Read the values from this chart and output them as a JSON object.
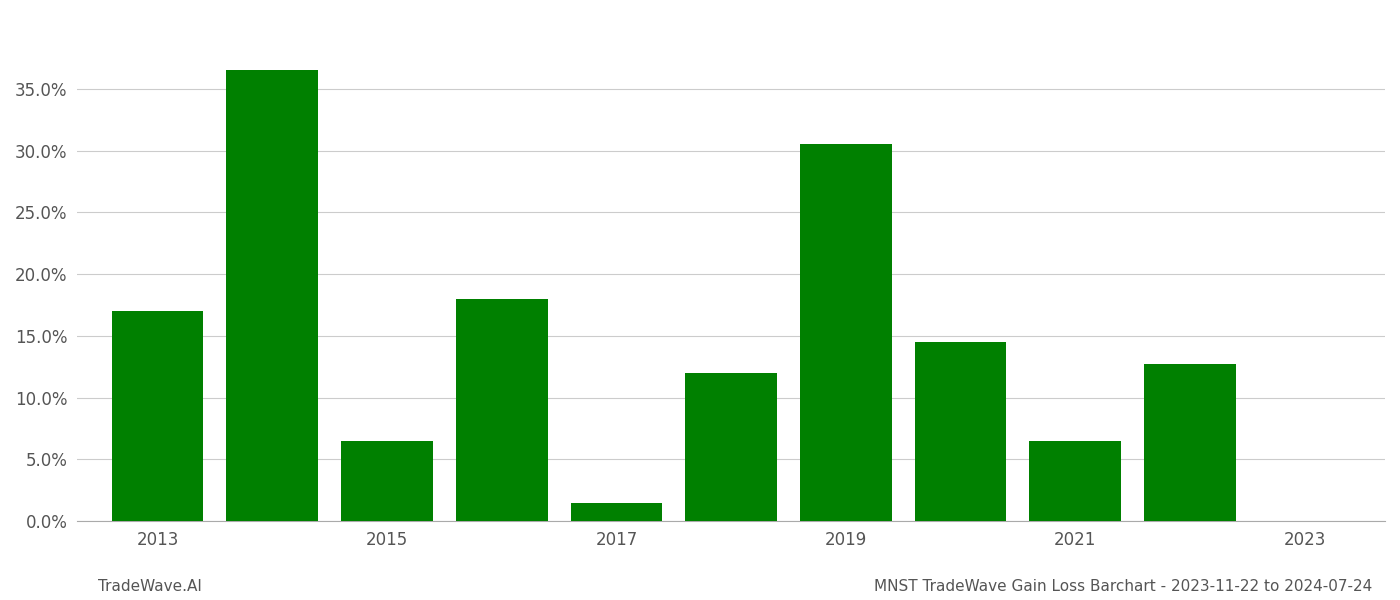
{
  "years": [
    2013,
    2014,
    2015,
    2016,
    2017,
    2018,
    2019,
    2020,
    2021,
    2022,
    2023
  ],
  "values": [
    0.17,
    0.365,
    0.065,
    0.18,
    0.015,
    0.12,
    0.305,
    0.145,
    0.065,
    0.127,
    0.0
  ],
  "bar_color": "#008000",
  "background_color": "#ffffff",
  "grid_color": "#cccccc",
  "ylim": [
    0.0,
    0.4
  ],
  "yticks": [
    0.0,
    0.05,
    0.1,
    0.15,
    0.2,
    0.25,
    0.3,
    0.35
  ],
  "label_years": [
    2013,
    2015,
    2017,
    2019,
    2021,
    2023
  ],
  "footer_left": "TradeWave.AI",
  "footer_right": "MNST TradeWave Gain Loss Barchart - 2023-11-22 to 2024-07-24",
  "bar_width": 0.8,
  "tick_fontsize": 12,
  "footer_fontsize": 11
}
